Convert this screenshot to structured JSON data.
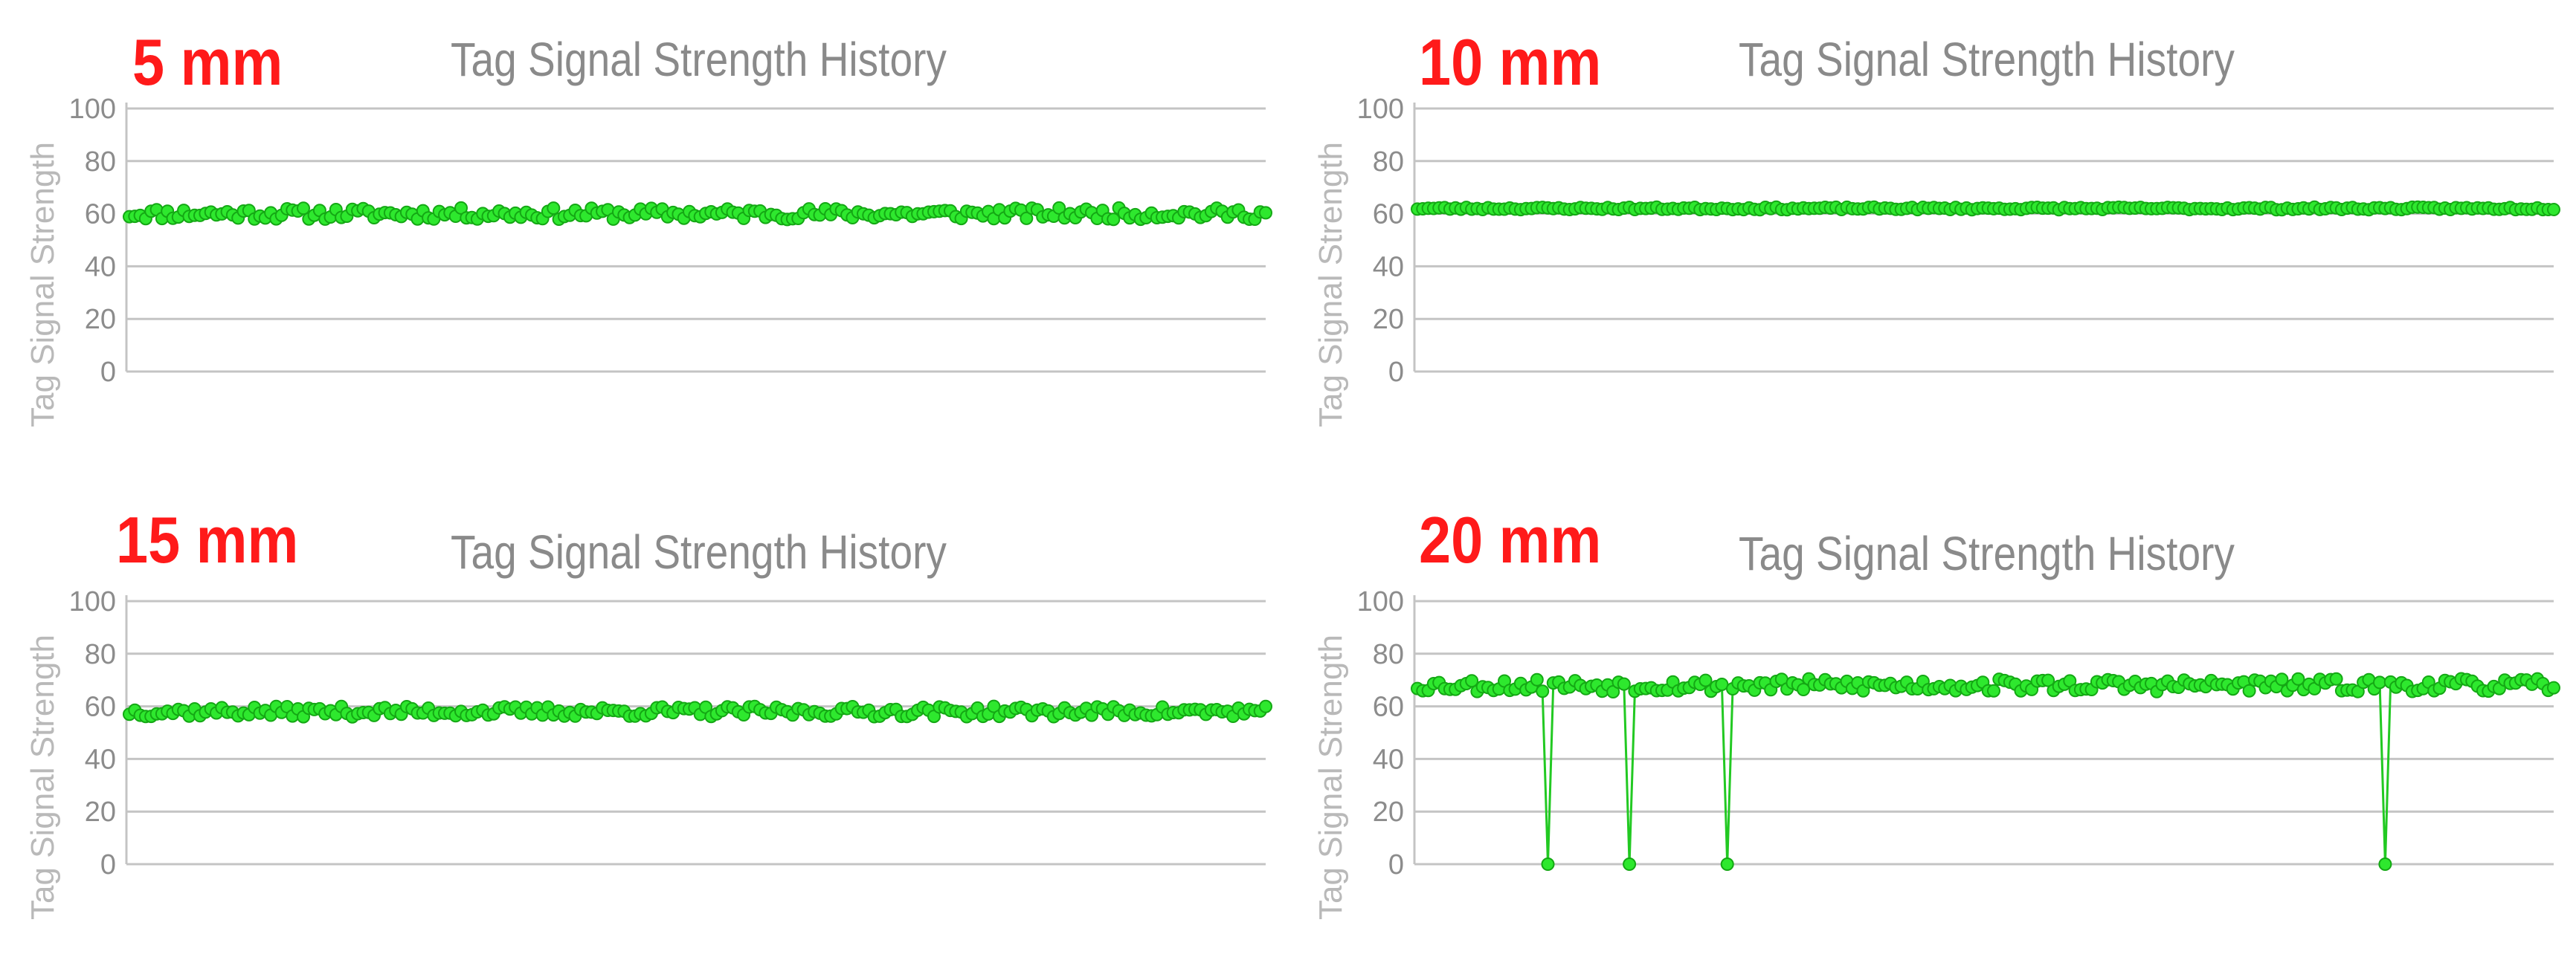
{
  "chart_data": [
    {
      "type": "line",
      "label": "5 mm",
      "title": "Tag Signal Strength History",
      "ylabel": "Tag Signal Strength",
      "xlabel": "",
      "ylim": [
        0,
        100
      ],
      "yticks": [
        "0",
        "20",
        "40",
        "60",
        "80",
        "100"
      ],
      "grid": true,
      "colors": {
        "line": "#22c922",
        "marker": "#2ee82e"
      },
      "series": [
        {
          "baseline": 60,
          "noise": 2.2,
          "count": 210,
          "seed": 11,
          "dips": []
        }
      ]
    },
    {
      "type": "line",
      "label": "10 mm",
      "title": "Tag Signal Strength History",
      "ylabel": "Tag Signal Strength",
      "xlabel": "",
      "ylim": [
        0,
        100
      ],
      "yticks": [
        "0",
        "20",
        "40",
        "60",
        "80",
        "100"
      ],
      "grid": true,
      "colors": {
        "line": "#22c922",
        "marker": "#2ee82e"
      },
      "series": [
        {
          "baseline": 62,
          "noise": 0.5,
          "count": 210,
          "seed": 23,
          "dips": []
        }
      ]
    },
    {
      "type": "line",
      "label": "15 mm",
      "title": "Tag Signal Strength History",
      "ylabel": "Tag Signal Strength",
      "xlabel": "",
      "ylim": [
        0,
        100
      ],
      "yticks": [
        "0",
        "20",
        "40",
        "60",
        "80",
        "100"
      ],
      "grid": true,
      "colors": {
        "line": "#22c922",
        "marker": "#2ee82e"
      },
      "series": [
        {
          "baseline": 58,
          "noise": 2.0,
          "count": 210,
          "seed": 37,
          "dips": []
        }
      ]
    },
    {
      "type": "line",
      "label": "20 mm",
      "title": "Tag Signal Strength History",
      "ylabel": "Tag Signal Strength",
      "xlabel": "",
      "ylim": [
        0,
        100
      ],
      "yticks": [
        "0",
        "20",
        "40",
        "60",
        "80",
        "100"
      ],
      "grid": true,
      "colors": {
        "line": "#22c922",
        "marker": "#2ee82e"
      },
      "series": [
        {
          "baseline": 68,
          "noise": 2.5,
          "count": 210,
          "seed": 53,
          "dips": [
            {
              "index": 24,
              "value": 0
            },
            {
              "index": 39,
              "value": 0
            },
            {
              "index": 57,
              "value": 0
            },
            {
              "index": 178,
              "value": 0
            }
          ]
        }
      ]
    }
  ]
}
